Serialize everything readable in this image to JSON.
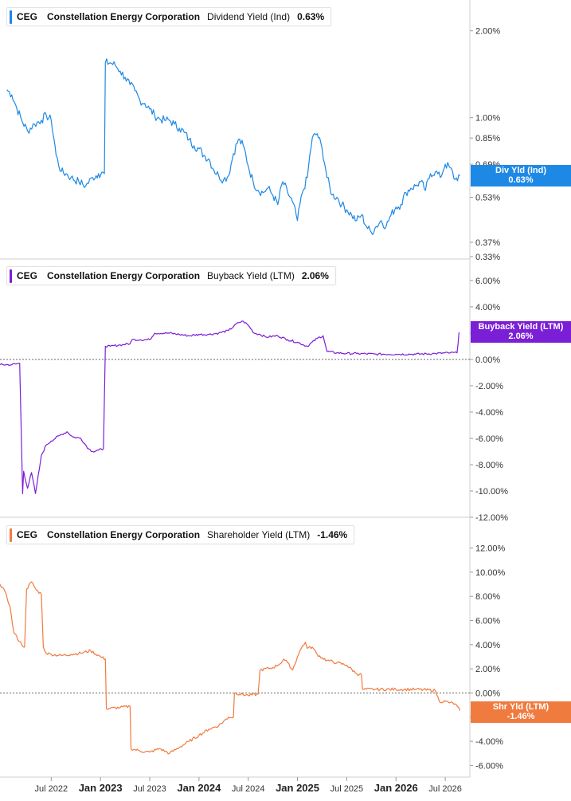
{
  "colors": {
    "div": "#1e88e5",
    "buyback": "#7b1fd6",
    "shareholder": "#f07b3f",
    "grid": "#d7d7d7",
    "zero": "#666666"
  },
  "x_axis": {
    "ticks": [
      {
        "label": "Jul 2022",
        "t": 2022.5,
        "major": false
      },
      {
        "label": "Jan 2023",
        "t": 2023.0,
        "major": true
      },
      {
        "label": "Jul 2023",
        "t": 2023.5,
        "major": false
      },
      {
        "label": "Jan 2024",
        "t": 2024.0,
        "major": true
      },
      {
        "label": "Jul 2024",
        "t": 2024.5,
        "major": false
      },
      {
        "label": "Jan 2025",
        "t": 2025.0,
        "major": true
      },
      {
        "label": "Jul 2025",
        "t": 2025.5,
        "major": false
      },
      {
        "label": "Jan 2026",
        "t": 2026.0,
        "major": true
      },
      {
        "label": "Jul 2026",
        "t": 2026.5,
        "major": false
      }
    ]
  },
  "chart_data": [
    {
      "type": "line",
      "scale": "log",
      "ticker": "CEG",
      "company": "Constellation Energy Corporation",
      "metric": "Dividend Yield (Ind)",
      "current": "0.63%",
      "flag_label": "Div Yld (Ind)",
      "ylim": [
        0.33,
        2.4
      ],
      "ticks": [
        {
          "v": 2.0,
          "label": "2.00%"
        },
        {
          "v": 1.0,
          "label": "1.00%"
        },
        {
          "v": 0.85,
          "label": "0.85%"
        },
        {
          "v": 0.69,
          "label": "0.69%"
        },
        {
          "v": 0.53,
          "label": "0.53%"
        },
        {
          "v": 0.37,
          "label": "0.37%"
        },
        {
          "v": 0.33,
          "label": "0.33%"
        }
      ],
      "x": [
        2022.05,
        2022.1,
        2022.15,
        2022.2,
        2022.26,
        2022.33,
        2022.4,
        2022.45,
        2022.5,
        2022.55,
        2022.6,
        2022.65,
        2022.7,
        2022.78,
        2022.85,
        2022.92,
        2022.98,
        2023.04,
        2023.05,
        2023.1,
        2023.15,
        2023.2,
        2023.25,
        2023.3,
        2023.35,
        2023.4,
        2023.45,
        2023.5,
        2023.55,
        2023.6,
        2023.65,
        2023.7,
        2023.75,
        2023.8,
        2023.85,
        2023.9,
        2023.95,
        2024.0,
        2024.05,
        2024.1,
        2024.15,
        2024.2,
        2024.25,
        2024.3,
        2024.35,
        2024.4,
        2024.45,
        2024.5,
        2024.55,
        2024.6,
        2024.65,
        2024.7,
        2024.75,
        2024.8,
        2024.85,
        2024.9,
        2024.95,
        2025.0,
        2025.05,
        2025.1,
        2025.15,
        2025.2,
        2025.25,
        2025.3,
        2025.35,
        2025.4,
        2025.45,
        2025.5,
        2025.55,
        2025.6,
        2025.65,
        2025.7,
        2025.75,
        2025.8,
        2025.85,
        2025.9,
        2025.95,
        2026.0,
        2026.05,
        2026.1,
        2026.15,
        2026.2,
        2026.25,
        2026.3,
        2026.35,
        2026.4,
        2026.45,
        2026.5,
        2026.55,
        2026.6,
        2026.65
      ],
      "y": [
        1.25,
        1.2,
        1.08,
        0.98,
        0.9,
        0.95,
        0.98,
        1.02,
        0.98,
        0.74,
        0.65,
        0.64,
        0.62,
        0.6,
        0.58,
        0.62,
        0.64,
        0.64,
        1.55,
        1.55,
        1.52,
        1.45,
        1.38,
        1.3,
        1.24,
        1.15,
        1.12,
        1.07,
        1.02,
        0.99,
        0.98,
        0.98,
        0.95,
        0.92,
        0.89,
        0.84,
        0.8,
        0.78,
        0.74,
        0.72,
        0.66,
        0.63,
        0.61,
        0.63,
        0.75,
        0.84,
        0.8,
        0.68,
        0.6,
        0.56,
        0.55,
        0.57,
        0.54,
        0.5,
        0.6,
        0.55,
        0.51,
        0.44,
        0.55,
        0.62,
        0.85,
        0.88,
        0.78,
        0.62,
        0.54,
        0.53,
        0.5,
        0.48,
        0.46,
        0.44,
        0.46,
        0.42,
        0.4,
        0.42,
        0.44,
        0.42,
        0.46,
        0.49,
        0.5,
        0.55,
        0.57,
        0.58,
        0.6,
        0.56,
        0.64,
        0.65,
        0.62,
        0.69,
        0.67,
        0.61,
        0.63
      ]
    },
    {
      "type": "line",
      "scale": "linear",
      "ticker": "CEG",
      "company": "Constellation Energy Corporation",
      "metric": "Buyback Yield (LTM)",
      "current": "2.06%",
      "flag_label": "Buyback Yield (LTM)",
      "ylim": [
        -12,
        6.3
      ],
      "ticks": [
        {
          "v": 6,
          "label": "6.00%"
        },
        {
          "v": 4,
          "label": "4.00%"
        },
        {
          "v": 2,
          "label": "2.00%"
        },
        {
          "v": 0,
          "label": "0.00%"
        },
        {
          "v": -2,
          "label": "-2.00%"
        },
        {
          "v": -4,
          "label": "-4.00%"
        },
        {
          "v": -6,
          "label": "-6.00%"
        },
        {
          "v": -8,
          "label": "-8.00%"
        },
        {
          "v": -10,
          "label": "-10.00%"
        },
        {
          "v": -12,
          "label": "-12.00%"
        }
      ],
      "x": [
        2021.98,
        2022.1,
        2022.18,
        2022.21,
        2022.22,
        2022.26,
        2022.3,
        2022.34,
        2022.38,
        2022.4,
        2022.45,
        2022.5,
        2022.58,
        2022.66,
        2022.72,
        2022.8,
        2022.88,
        2022.92,
        2022.98,
        2023.03,
        2023.05,
        2023.1,
        2023.2,
        2023.3,
        2023.32,
        2023.4,
        2023.5,
        2023.55,
        2023.7,
        2023.8,
        2023.9,
        2024.0,
        2024.1,
        2024.2,
        2024.3,
        2024.4,
        2024.45,
        2024.5,
        2024.56,
        2024.62,
        2024.68,
        2024.8,
        2024.9,
        2025.0,
        2025.1,
        2025.2,
        2025.26,
        2025.3,
        2025.4,
        2025.5,
        2025.6,
        2025.8,
        2026.0,
        2026.2,
        2026.4,
        2026.55,
        2026.62,
        2026.64
      ],
      "y": [
        -0.4,
        -0.4,
        -0.3,
        -10.2,
        -8.5,
        -9.8,
        -8.6,
        -10.2,
        -8.3,
        -7.3,
        -6.5,
        -6.2,
        -5.8,
        -5.5,
        -5.9,
        -6.0,
        -6.8,
        -7.0,
        -6.9,
        -6.8,
        1.0,
        1.0,
        1.1,
        1.2,
        1.5,
        1.5,
        1.5,
        2.0,
        2.0,
        1.9,
        1.8,
        1.9,
        1.9,
        2.0,
        2.2,
        2.8,
        2.9,
        2.6,
        2.0,
        1.9,
        1.7,
        1.8,
        1.5,
        1.3,
        1.0,
        1.6,
        1.8,
        0.6,
        0.5,
        0.45,
        0.45,
        0.4,
        0.4,
        0.4,
        0.45,
        0.5,
        0.5,
        2.06
      ]
    },
    {
      "type": "line",
      "scale": "linear",
      "ticker": "CEG",
      "company": "Constellation Energy Corporation",
      "metric": "Shareholder Yield (LTM)",
      "current": "-1.46%",
      "flag_label": "Shr Yld (LTM)",
      "ylim": [
        -6.5,
        12.5
      ],
      "ticks": [
        {
          "v": 12,
          "label": "12.00%"
        },
        {
          "v": 10,
          "label": "10.00%"
        },
        {
          "v": 8,
          "label": "8.00%"
        },
        {
          "v": 6,
          "label": "6.00%"
        },
        {
          "v": 4,
          "label": "4.00%"
        },
        {
          "v": 2,
          "label": "2.00%"
        },
        {
          "v": 0,
          "label": "0.00%"
        },
        {
          "v": -2,
          "label": "-2.00%"
        },
        {
          "v": -4,
          "label": "-4.00%"
        },
        {
          "v": -6,
          "label": "-6.00%"
        }
      ],
      "x": [
        2021.98,
        2022.03,
        2022.08,
        2022.12,
        2022.2,
        2022.23,
        2022.25,
        2022.3,
        2022.35,
        2022.4,
        2022.42,
        2022.45,
        2022.5,
        2022.6,
        2022.7,
        2022.8,
        2022.9,
        2023.0,
        2023.05,
        2023.06,
        2023.2,
        2023.3,
        2023.31,
        2023.4,
        2023.5,
        2023.6,
        2023.7,
        2023.8,
        2023.9,
        2024.0,
        2024.1,
        2024.2,
        2024.3,
        2024.35,
        2024.36,
        2024.5,
        2024.6,
        2024.62,
        2024.75,
        2024.82,
        2024.86,
        2024.9,
        2024.95,
        2025.0,
        2025.05,
        2025.08,
        2025.1,
        2025.15,
        2025.2,
        2025.25,
        2025.3,
        2025.4,
        2025.5,
        2025.6,
        2025.65,
        2025.66,
        2025.8,
        2026.0,
        2026.2,
        2026.4,
        2026.44,
        2026.5,
        2026.55,
        2026.6,
        2026.65
      ],
      "y": [
        9.0,
        8.4,
        7.2,
        5.0,
        4.0,
        3.8,
        8.6,
        9.2,
        8.5,
        8.2,
        3.8,
        3.3,
        3.2,
        3.1,
        3.2,
        3.3,
        3.5,
        3.0,
        2.8,
        -1.3,
        -1.2,
        -1.1,
        -4.6,
        -4.8,
        -4.9,
        -4.6,
        -5.0,
        -4.5,
        -4.0,
        -3.5,
        -3.0,
        -2.7,
        -2.0,
        -2.0,
        0.0,
        -0.2,
        -0.1,
        1.9,
        2.1,
        2.4,
        2.8,
        2.5,
        1.9,
        3.0,
        3.9,
        4.2,
        3.7,
        3.8,
        3.2,
        2.9,
        2.7,
        2.5,
        2.3,
        1.6,
        1.5,
        0.3,
        0.3,
        0.3,
        0.3,
        0.2,
        -0.7,
        -0.7,
        -0.8,
        -0.9,
        -1.46
      ]
    }
  ]
}
